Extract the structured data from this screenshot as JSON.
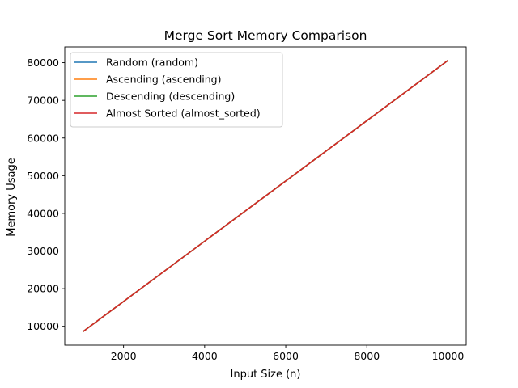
{
  "chart_data": {
    "type": "line",
    "title": "Merge Sort Memory Comparison",
    "xlabel": "Input Size (n)",
    "ylabel": "Memory Usage",
    "xlim": [
      550,
      10450
    ],
    "ylim": [
      5000,
      84200
    ],
    "x_ticks": [
      2000,
      4000,
      6000,
      8000,
      10000
    ],
    "x_tick_labels": [
      "2000",
      "4000",
      "6000",
      "8000",
      "10000"
    ],
    "y_ticks": [
      10000,
      20000,
      30000,
      40000,
      50000,
      60000,
      70000,
      80000
    ],
    "y_tick_labels": [
      "10000",
      "20000",
      "30000",
      "40000",
      "50000",
      "60000",
      "70000",
      "80000"
    ],
    "grid": false,
    "legend_position": "top-left",
    "x": [
      1000,
      10000
    ],
    "series": [
      {
        "name": "Random (random)",
        "color": "#1f77b4",
        "values": [
          8600,
          80600
        ]
      },
      {
        "name": "Ascending (ascending)",
        "color": "#ff7f0e",
        "values": [
          8600,
          80600
        ]
      },
      {
        "name": "Descending (descending)",
        "color": "#2ca02c",
        "values": [
          8600,
          80600
        ]
      },
      {
        "name": "Almost Sorted (almost_sorted)",
        "color": "#d62728",
        "values": [
          8600,
          80600
        ]
      }
    ]
  }
}
